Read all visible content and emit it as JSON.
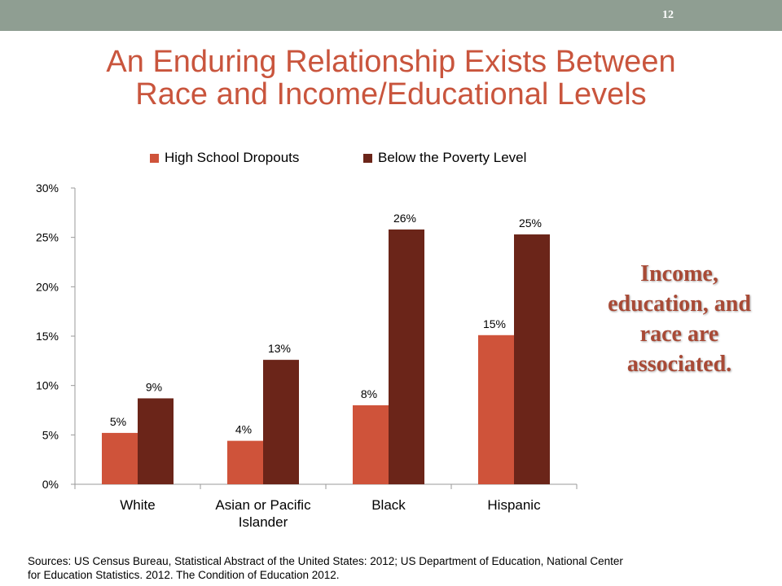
{
  "slide": {
    "number": "12",
    "title_lines": [
      "An Enduring Relationship Exists Between",
      "Race and Income/Educational Levels"
    ],
    "callout_lines": [
      "Income,",
      "education, and",
      "race are",
      "associated."
    ],
    "sources_lines": [
      "Sources: US Census Bureau, Statistical Abstract of the United States: 2012; US Department of Education, National Center",
      "for Education Statistics. 2012. The Condition of Education 2012."
    ]
  },
  "chart_data": {
    "type": "bar",
    "categories": [
      [
        "White"
      ],
      [
        "Asian or Pacific",
        "Islander"
      ],
      [
        "Black"
      ],
      [
        "Hispanic"
      ]
    ],
    "series": [
      {
        "name": "High School Dropouts",
        "color": "#cf533a",
        "values": [
          5.2,
          4.4,
          8.0,
          15.1
        ],
        "labels": [
          "5%",
          "4%",
          "8%",
          "15%"
        ]
      },
      {
        "name": "Below the Poverty Level",
        "color": "#6b2519",
        "values": [
          8.7,
          12.6,
          25.8,
          25.3
        ],
        "labels": [
          "9%",
          "13%",
          "26%",
          "25%"
        ]
      }
    ],
    "ylim": [
      0,
      30
    ],
    "yticks": [
      0,
      5,
      10,
      15,
      20,
      25,
      30
    ],
    "ytick_labels": [
      "0%",
      "5%",
      "10%",
      "15%",
      "20%",
      "25%",
      "30%"
    ],
    "legend_position": "top",
    "grid": false
  }
}
